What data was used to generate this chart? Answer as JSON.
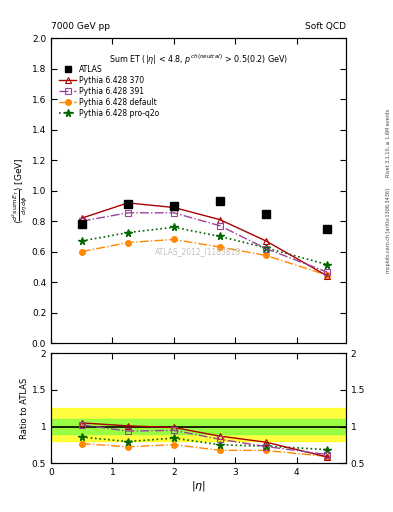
{
  "title_left": "7000 GeV pp",
  "title_right": "Soft QCD",
  "watermark": "ATLAS_2012_I1183818",
  "right_label_top": "Rivet 3.1.10, ≥ 1.6M events",
  "right_label_bottom": "mcplots.cern.ch [arXiv:1306.3436]",
  "ylabel_ratio": "Ratio to ATLAS",
  "xlabel": "|\\eta|",
  "ylim_main": [
    0.0,
    2.0
  ],
  "ylim_ratio": [
    0.5,
    2.0
  ],
  "xlim": [
    0.0,
    4.8
  ],
  "eta_points": [
    0.5,
    1.25,
    2.0,
    2.75,
    3.5,
    4.5
  ],
  "atlas_data": [
    0.78,
    0.91,
    0.9,
    0.93,
    0.85,
    0.75
  ],
  "pythia_370": [
    0.82,
    0.92,
    0.89,
    0.81,
    0.67,
    0.44
  ],
  "pythia_391": [
    0.8,
    0.855,
    0.855,
    0.77,
    0.62,
    0.465
  ],
  "pythia_default": [
    0.6,
    0.66,
    0.68,
    0.63,
    0.575,
    0.445
  ],
  "pythia_proq2o": [
    0.67,
    0.725,
    0.76,
    0.7,
    0.625,
    0.515
  ],
  "color_370": "#aa0000",
  "color_391": "#994499",
  "color_default": "#ff8800",
  "color_proq2o": "#006600",
  "band_green_lo": 0.9,
  "band_green_hi": 1.1,
  "band_yellow_lo": 0.8,
  "band_yellow_hi": 1.25
}
